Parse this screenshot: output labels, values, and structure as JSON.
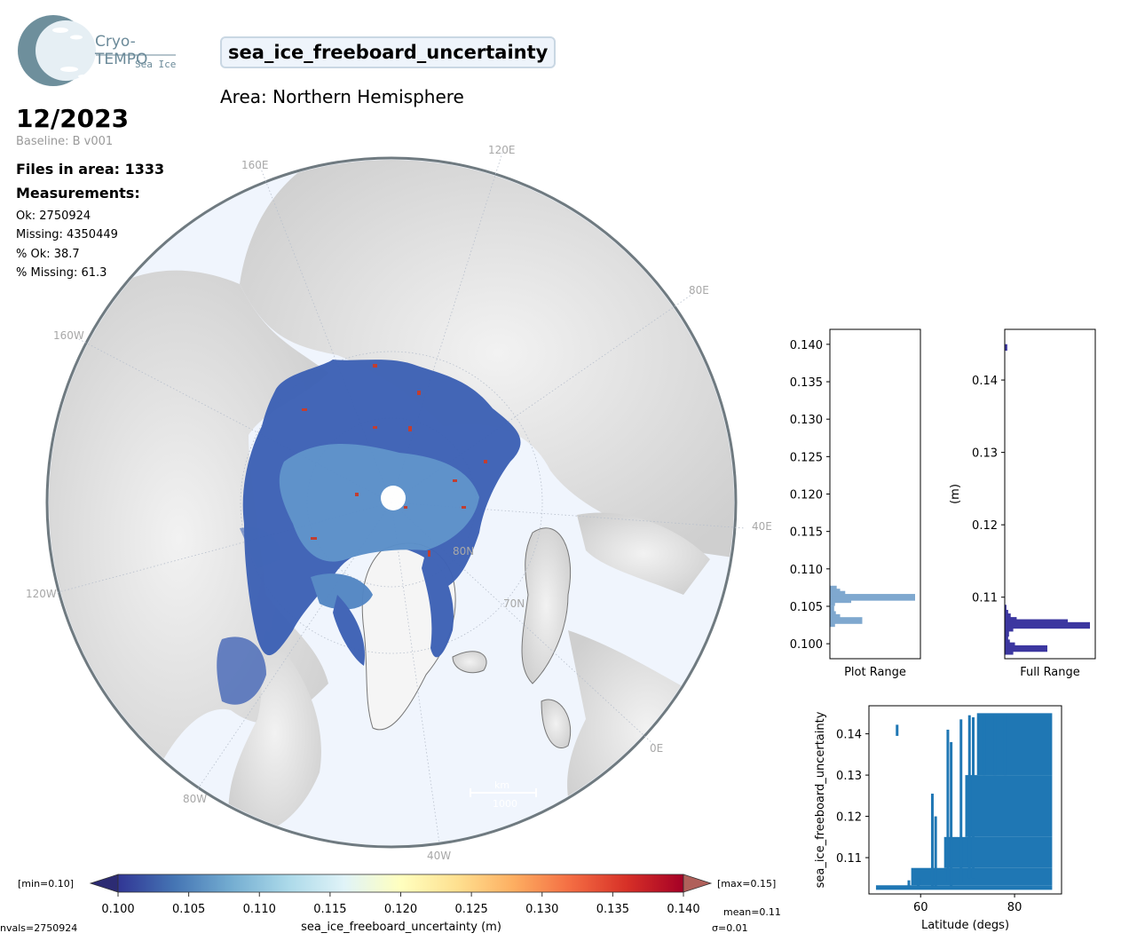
{
  "logo": {
    "name": "Cryo-TEMPO",
    "sub": "Sea Ice"
  },
  "title": "sea_ice_freeboard_uncertainty",
  "area": "Area: Northern Hemisphere",
  "date": "12/2023",
  "baseline": "Baseline: B v001",
  "files": "Files in area: 1333",
  "measurements_heading": "Measurements:",
  "stats": {
    "ok": "Ok: 2750924",
    "missing": "Missing: 4350449",
    "pct_ok": "% Ok: 38.7",
    "pct_missing": "% Missing: 61.3"
  },
  "map": {
    "lon_labels": [
      "120E",
      "160E",
      "80E",
      "160W",
      "40E",
      "120W",
      "0E",
      "80W",
      "40W"
    ],
    "lat_labels": [
      "80N",
      "70N"
    ],
    "scale_unit": "km",
    "scale_value": "1000"
  },
  "colorbar": {
    "min_label": "[min=0.10]",
    "max_label": "[max=0.15]",
    "ticks": [
      "0.100",
      "0.105",
      "0.110",
      "0.115",
      "0.120",
      "0.125",
      "0.130",
      "0.135",
      "0.140"
    ],
    "label": "sea_ice_freeboard_uncertainty (m)",
    "mean": "mean=0.11",
    "sigma": "σ=0.01",
    "nvals": "nvals=2750924",
    "colors": [
      "#313695",
      "#4575b4",
      "#74add1",
      "#abd9e9",
      "#e0f3f8",
      "#ffffbf",
      "#fee090",
      "#fdae61",
      "#f46d43",
      "#d73027",
      "#a50026"
    ]
  },
  "chart_data": [
    {
      "type": "bar",
      "orientation": "horizontal",
      "xlabel": "Plot Range",
      "ylim": [
        0.098,
        0.142
      ],
      "ytick_labels": [
        "0.140",
        "0.135",
        "0.130",
        "0.125",
        "0.120",
        "0.115",
        "0.110",
        "0.105",
        "0.100"
      ],
      "bars": [
        {
          "y": 0.1073,
          "w": 0.08
        },
        {
          "y": 0.1069,
          "w": 0.12
        },
        {
          "y": 0.1066,
          "w": 0.18
        },
        {
          "y": 0.1062,
          "w": 1.0
        },
        {
          "y": 0.1059,
          "w": 0.25
        },
        {
          "y": 0.1055,
          "w": 0.06
        },
        {
          "y": 0.1046,
          "w": 0.05
        },
        {
          "y": 0.1039,
          "w": 0.07
        },
        {
          "y": 0.1035,
          "w": 0.12
        },
        {
          "y": 0.1031,
          "w": 0.38
        },
        {
          "y": 0.1027,
          "w": 0.06
        }
      ],
      "color": "#7fa8cf"
    },
    {
      "type": "bar",
      "orientation": "horizontal",
      "xlabel": "Full Range",
      "ylabel": "(m)",
      "ylim": [
        0.1015,
        0.147
      ],
      "ytick_labels": [
        "0.14",
        "0.13",
        "0.12",
        "0.11"
      ],
      "bars": [
        {
          "y": 0.1445,
          "w": 0.03
        },
        {
          "y": 0.1085,
          "w": 0.02
        },
        {
          "y": 0.1078,
          "w": 0.04
        },
        {
          "y": 0.1073,
          "w": 0.07
        },
        {
          "y": 0.1068,
          "w": 0.14
        },
        {
          "y": 0.1065,
          "w": 0.74
        },
        {
          "y": 0.1061,
          "w": 1.0
        },
        {
          "y": 0.1057,
          "w": 0.1
        },
        {
          "y": 0.105,
          "w": 0.05
        },
        {
          "y": 0.1043,
          "w": 0.04
        },
        {
          "y": 0.1037,
          "w": 0.06
        },
        {
          "y": 0.1033,
          "w": 0.12
        },
        {
          "y": 0.1029,
          "w": 0.5
        },
        {
          "y": 0.1025,
          "w": 0.1
        }
      ],
      "color": "#3c37a0"
    },
    {
      "type": "scatter",
      "xlabel": "Latitude (degs)",
      "ylabel": "sea_ice_freeboard_uncertainty",
      "xlim": [
        49,
        90
      ],
      "ylim": [
        0.1012,
        0.1468
      ],
      "xtick_labels": [
        "60",
        "80"
      ],
      "ytick_labels": [
        "0.14",
        "0.13",
        "0.12",
        "0.11"
      ],
      "bands": [
        {
          "x0": 50.5,
          "x1": 88,
          "y0": 0.1022,
          "y1": 0.1033
        },
        {
          "x0": 58,
          "x1": 88,
          "y0": 0.1033,
          "y1": 0.1075
        },
        {
          "x0": 65,
          "x1": 88,
          "y0": 0.1075,
          "y1": 0.115
        },
        {
          "x0": 69.5,
          "x1": 88,
          "y0": 0.115,
          "y1": 0.13
        },
        {
          "x0": 72,
          "x1": 88,
          "y0": 0.13,
          "y1": 0.145
        }
      ],
      "columns": [
        {
          "x": 55,
          "y0": 0.1395,
          "y1": 0.1422
        },
        {
          "x": 62.5,
          "y0": 0.103,
          "y1": 0.1255
        },
        {
          "x": 63.2,
          "y0": 0.103,
          "y1": 0.12
        },
        {
          "x": 65.8,
          "y0": 0.104,
          "y1": 0.141
        },
        {
          "x": 66.5,
          "y0": 0.103,
          "y1": 0.138
        },
        {
          "x": 68.6,
          "y0": 0.104,
          "y1": 0.1435
        },
        {
          "x": 70.4,
          "y0": 0.105,
          "y1": 0.1445
        },
        {
          "x": 71.2,
          "y0": 0.105,
          "y1": 0.144
        },
        {
          "x": 73.5,
          "y0": 0.13,
          "y1": 0.1448
        },
        {
          "x": 75.8,
          "y0": 0.13,
          "y1": 0.1448
        },
        {
          "x": 78,
          "y0": 0.13,
          "y1": 0.1448
        },
        {
          "x": 57.5,
          "y0": 0.1025,
          "y1": 0.1045
        },
        {
          "x": 59.5,
          "y0": 0.1025,
          "y1": 0.105
        }
      ],
      "color": "#1f77b4"
    }
  ]
}
